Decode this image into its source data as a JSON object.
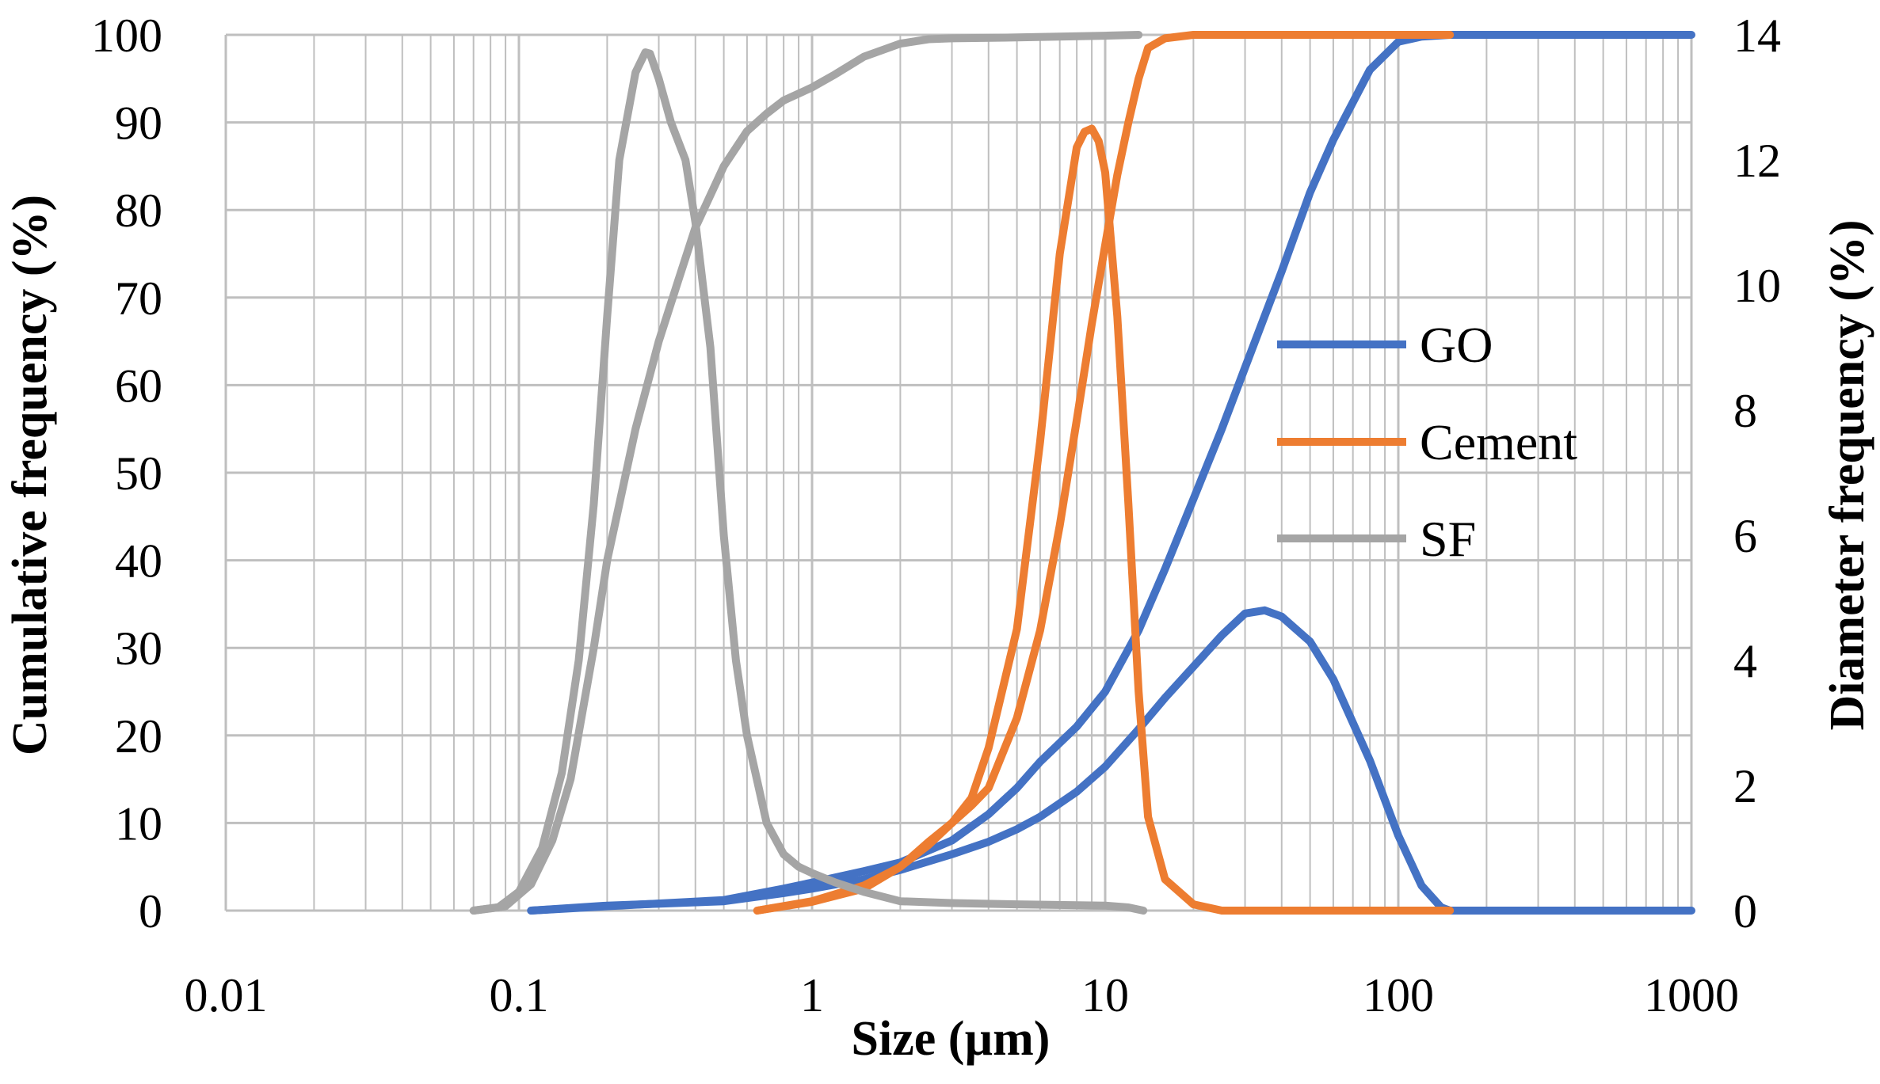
{
  "chart_data": {
    "type": "line",
    "title": "",
    "xlabel": "Size (µm)",
    "ylabel": "Cumulative frequency (%)",
    "y2label": "Diameter frequency (%)",
    "xscale": "log",
    "xlim": [
      0.01,
      1000
    ],
    "ylim": [
      0,
      100
    ],
    "y2lim": [
      0,
      14
    ],
    "x_ticks": [
      0.01,
      0.1,
      1,
      10,
      100,
      1000
    ],
    "x_tick_labels": [
      "0.01",
      "0.1",
      "1",
      "10",
      "100",
      "1000"
    ],
    "y_ticks": [
      0,
      10,
      20,
      30,
      40,
      50,
      60,
      70,
      80,
      90,
      100
    ],
    "y_tick_labels": [
      "0",
      "10",
      "20",
      "30",
      "40",
      "50",
      "60",
      "70",
      "80",
      "90",
      "100"
    ],
    "y2_ticks": [
      0,
      2,
      4,
      6,
      8,
      10,
      12,
      14
    ],
    "y2_tick_labels": [
      "0",
      "2",
      "4",
      "6",
      "8",
      "10",
      "12",
      "14"
    ],
    "grid": true,
    "legend_position": "right",
    "legend": [
      "GO",
      "Cement",
      "SF"
    ],
    "colors": {
      "GO": "#4472C4",
      "Cement": "#ED7D31",
      "SF": "#A5A5A5",
      "grid": "#BFBFBF"
    },
    "series": [
      {
        "name": "GO",
        "kind": "cumulative",
        "axis": "left",
        "x": [
          0.11,
          0.2,
          0.5,
          0.8,
          1,
          1.5,
          2,
          3,
          4,
          5,
          6,
          8,
          10,
          13,
          16,
          20,
          25,
          30,
          40,
          50,
          60,
          80,
          100,
          120,
          150,
          200,
          500,
          1000
        ],
        "y": [
          0,
          0.5,
          1.2,
          2.5,
          3.2,
          4.5,
          5.5,
          8,
          11,
          14,
          17,
          21,
          25,
          32,
          39,
          47,
          55,
          62,
          73,
          82,
          88,
          96,
          99.2,
          99.8,
          100,
          100,
          100,
          100
        ]
      },
      {
        "name": "GO",
        "kind": "frequency",
        "axis": "right",
        "x": [
          0.11,
          0.2,
          0.5,
          0.8,
          1,
          1.5,
          2,
          3,
          4,
          5,
          6,
          8,
          10,
          13,
          16,
          20,
          25,
          30,
          35,
          40,
          50,
          60,
          80,
          100,
          120,
          140,
          150,
          200,
          500,
          1000
        ],
        "y": [
          0,
          0.08,
          0.15,
          0.28,
          0.35,
          0.5,
          0.65,
          0.9,
          1.1,
          1.3,
          1.5,
          1.9,
          2.3,
          2.9,
          3.4,
          3.9,
          4.4,
          4.75,
          4.8,
          4.7,
          4.3,
          3.7,
          2.4,
          1.2,
          0.4,
          0.05,
          0,
          0,
          0,
          0
        ]
      },
      {
        "name": "Cement",
        "kind": "cumulative",
        "axis": "left",
        "x": [
          0.65,
          1,
          1.5,
          2,
          2.5,
          3,
          3.5,
          4,
          5,
          6,
          7,
          8,
          9,
          10,
          11,
          12,
          13,
          14,
          16,
          20,
          30,
          50,
          100,
          150
        ],
        "y": [
          0,
          1,
          2.5,
          5,
          7.5,
          10,
          12,
          14,
          22,
          32,
          44,
          56,
          67,
          76,
          84,
          90,
          95,
          98.5,
          99.6,
          100,
          100,
          100,
          100,
          100
        ]
      },
      {
        "name": "Cement",
        "kind": "frequency",
        "axis": "right",
        "x": [
          0.65,
          1,
          1.5,
          2,
          2.5,
          3,
          3.5,
          4,
          5,
          6,
          7,
          8,
          8.5,
          9,
          9.5,
          10,
          11,
          12,
          13,
          14,
          16,
          20,
          25,
          30,
          50,
          100,
          150
        ],
        "y": [
          0,
          0.15,
          0.4,
          0.7,
          1.1,
          1.4,
          1.8,
          2.6,
          4.5,
          7.5,
          10.5,
          12.2,
          12.45,
          12.5,
          12.3,
          11.8,
          9.5,
          6.5,
          3.5,
          1.5,
          0.5,
          0.1,
          0,
          0,
          0,
          0,
          0
        ]
      },
      {
        "name": "SF",
        "kind": "cumulative",
        "axis": "left",
        "x": [
          0.07,
          0.09,
          0.11,
          0.13,
          0.15,
          0.18,
          0.2,
          0.25,
          0.3,
          0.35,
          0.4,
          0.5,
          0.6,
          0.7,
          0.8,
          1,
          1.2,
          1.5,
          2,
          2.5,
          3,
          5,
          10,
          13
        ],
        "y": [
          0,
          0.5,
          3,
          8,
          15,
          30,
          40,
          55,
          65,
          72,
          78,
          85,
          89,
          91,
          92.5,
          94,
          95.5,
          97.5,
          99,
          99.5,
          99.6,
          99.7,
          99.9,
          100
        ]
      },
      {
        "name": "SF",
        "kind": "frequency",
        "axis": "right",
        "x": [
          0.07,
          0.085,
          0.1,
          0.12,
          0.14,
          0.16,
          0.18,
          0.2,
          0.22,
          0.25,
          0.27,
          0.28,
          0.3,
          0.33,
          0.37,
          0.4,
          0.45,
          0.5,
          0.55,
          0.6,
          0.7,
          0.8,
          0.9,
          1,
          1.2,
          1.5,
          2,
          3,
          5,
          10,
          12,
          13.5
        ],
        "y": [
          0,
          0.05,
          0.3,
          1.0,
          2.2,
          4.0,
          6.5,
          9.5,
          12.0,
          13.4,
          13.72,
          13.7,
          13.3,
          12.6,
          12.0,
          11.0,
          9.0,
          6.0,
          4.0,
          2.8,
          1.4,
          0.9,
          0.7,
          0.6,
          0.45,
          0.3,
          0.15,
          0.12,
          0.1,
          0.08,
          0.05,
          0
        ]
      }
    ]
  }
}
